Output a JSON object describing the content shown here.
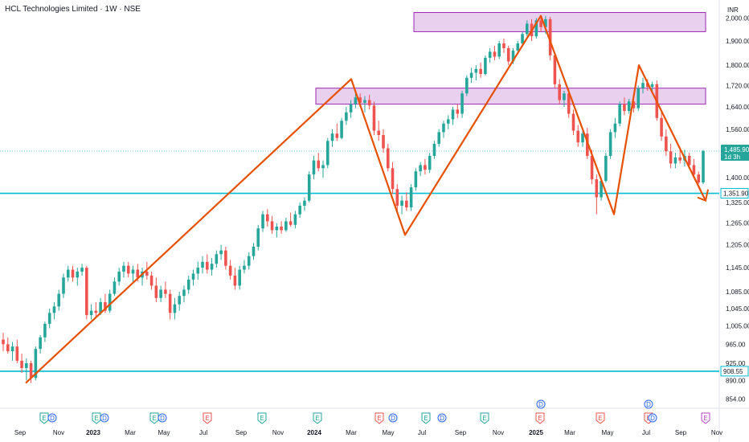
{
  "header": {
    "symbol_title": "HCL Technologies Limited · 1W · NSE",
    "currency": "INR"
  },
  "chart_data": {
    "type": "candlestick",
    "title": "HCL Technologies Limited · 1W · NSE",
    "y_axis": {
      "scale": "log",
      "range": [
        850,
        2060
      ],
      "ticks": [
        "2,000.00",
        "1,900.00",
        "1,800.00",
        "1,720.00",
        "1,640.00",
        "1,560.00",
        "1,400.00",
        "1,325.00",
        "1,265.00",
        "1,205.00",
        "1,145.00",
        "1,085.00",
        "1,045.00",
        "1,005.00",
        "965.00",
        "925.00",
        "890.00",
        "854.00"
      ]
    },
    "x_axis": {
      "labels": [
        "Sep",
        "Nov",
        "2023",
        "Mar",
        "May",
        "Jul",
        "Sep",
        "Nov",
        "2024",
        "Mar",
        "May",
        "Jul",
        "Sep",
        "Nov",
        "2025",
        "Mar",
        "May",
        "Jul",
        "Sep",
        "Nov"
      ]
    },
    "current_price": {
      "label": "1,485.90",
      "countdown": "1d 3h",
      "value": 1485.9,
      "color": "#26a69a"
    },
    "horizontal_levels": [
      {
        "label": "1,351.90",
        "value": 1351.9,
        "color": "#00bcd4"
      },
      {
        "label": "908.55",
        "value": 908.55,
        "color": "#00bcd4"
      }
    ],
    "zones": [
      {
        "from_value": 1940,
        "to_value": 2025,
        "color": "#9c27b0"
      },
      {
        "from_value": 1650,
        "to_value": 1710,
        "color": "#9c27b0"
      }
    ],
    "zigzag_points": [
      {
        "date": "Sep 2022",
        "value": 885
      },
      {
        "date": "Mar 2024",
        "value": 1745
      },
      {
        "date": "Jun 2024",
        "value": 1232
      },
      {
        "date": "Jan 2025",
        "value": 2010
      },
      {
        "date": "Apr 2025",
        "value": 1290
      },
      {
        "date": "Jul 2025",
        "value": 1800
      },
      {
        "date": "Oct 2025",
        "value": 1330
      }
    ],
    "zigzag_color": "#e65100",
    "up_color": "#26a69a",
    "down_color": "#ef5350",
    "candles": [
      {
        "o": 975,
        "h": 990,
        "l": 950,
        "c": 965
      },
      {
        "o": 965,
        "h": 980,
        "l": 945,
        "c": 950
      },
      {
        "o": 950,
        "h": 970,
        "l": 930,
        "c": 960
      },
      {
        "o": 960,
        "h": 975,
        "l": 925,
        "c": 930
      },
      {
        "o": 930,
        "h": 945,
        "l": 905,
        "c": 915
      },
      {
        "o": 915,
        "h": 935,
        "l": 890,
        "c": 925
      },
      {
        "o": 925,
        "h": 930,
        "l": 885,
        "c": 895
      },
      {
        "o": 895,
        "h": 960,
        "l": 890,
        "c": 955
      },
      {
        "o": 955,
        "h": 985,
        "l": 945,
        "c": 980
      },
      {
        "o": 980,
        "h": 1015,
        "l": 970,
        "c": 1010
      },
      {
        "o": 1010,
        "h": 1045,
        "l": 1000,
        "c": 1035
      },
      {
        "o": 1035,
        "h": 1060,
        "l": 1020,
        "c": 1050
      },
      {
        "o": 1050,
        "h": 1090,
        "l": 1040,
        "c": 1080
      },
      {
        "o": 1080,
        "h": 1130,
        "l": 1070,
        "c": 1120
      },
      {
        "o": 1120,
        "h": 1150,
        "l": 1110,
        "c": 1140
      },
      {
        "o": 1140,
        "h": 1150,
        "l": 1110,
        "c": 1120
      },
      {
        "o": 1120,
        "h": 1145,
        "l": 1100,
        "c": 1135
      },
      {
        "o": 1135,
        "h": 1155,
        "l": 1125,
        "c": 1145
      },
      {
        "o": 1145,
        "h": 1150,
        "l": 1020,
        "c": 1030
      },
      {
        "o": 1030,
        "h": 1055,
        "l": 1020,
        "c": 1040
      },
      {
        "o": 1040,
        "h": 1060,
        "l": 1025,
        "c": 1035
      },
      {
        "o": 1035,
        "h": 1070,
        "l": 1030,
        "c": 1060
      },
      {
        "o": 1060,
        "h": 1080,
        "l": 1035,
        "c": 1040
      },
      {
        "o": 1040,
        "h": 1090,
        "l": 1035,
        "c": 1080
      },
      {
        "o": 1080,
        "h": 1120,
        "l": 1075,
        "c": 1110
      },
      {
        "o": 1110,
        "h": 1145,
        "l": 1100,
        "c": 1135
      },
      {
        "o": 1135,
        "h": 1160,
        "l": 1120,
        "c": 1150
      },
      {
        "o": 1150,
        "h": 1160,
        "l": 1120,
        "c": 1130
      },
      {
        "o": 1130,
        "h": 1150,
        "l": 1110,
        "c": 1140
      },
      {
        "o": 1140,
        "h": 1155,
        "l": 1110,
        "c": 1120
      },
      {
        "o": 1120,
        "h": 1145,
        "l": 1100,
        "c": 1135
      },
      {
        "o": 1135,
        "h": 1160,
        "l": 1115,
        "c": 1125
      },
      {
        "o": 1125,
        "h": 1135,
        "l": 1090,
        "c": 1100
      },
      {
        "o": 1100,
        "h": 1120,
        "l": 1060,
        "c": 1070
      },
      {
        "o": 1070,
        "h": 1100,
        "l": 1060,
        "c": 1090
      },
      {
        "o": 1090,
        "h": 1110,
        "l": 1070,
        "c": 1080
      },
      {
        "o": 1080,
        "h": 1090,
        "l": 1020,
        "c": 1035
      },
      {
        "o": 1035,
        "h": 1070,
        "l": 1020,
        "c": 1055
      },
      {
        "o": 1055,
        "h": 1085,
        "l": 1040,
        "c": 1075
      },
      {
        "o": 1075,
        "h": 1100,
        "l": 1060,
        "c": 1090
      },
      {
        "o": 1090,
        "h": 1125,
        "l": 1080,
        "c": 1115
      },
      {
        "o": 1115,
        "h": 1140,
        "l": 1100,
        "c": 1130
      },
      {
        "o": 1130,
        "h": 1160,
        "l": 1115,
        "c": 1145
      },
      {
        "o": 1145,
        "h": 1175,
        "l": 1130,
        "c": 1160
      },
      {
        "o": 1160,
        "h": 1180,
        "l": 1130,
        "c": 1140
      },
      {
        "o": 1140,
        "h": 1170,
        "l": 1125,
        "c": 1155
      },
      {
        "o": 1155,
        "h": 1190,
        "l": 1145,
        "c": 1180
      },
      {
        "o": 1180,
        "h": 1205,
        "l": 1165,
        "c": 1190
      },
      {
        "o": 1190,
        "h": 1200,
        "l": 1140,
        "c": 1150
      },
      {
        "o": 1150,
        "h": 1165,
        "l": 1115,
        "c": 1125
      },
      {
        "o": 1125,
        "h": 1145,
        "l": 1090,
        "c": 1100
      },
      {
        "o": 1100,
        "h": 1150,
        "l": 1090,
        "c": 1140
      },
      {
        "o": 1140,
        "h": 1165,
        "l": 1130,
        "c": 1150
      },
      {
        "o": 1150,
        "h": 1185,
        "l": 1140,
        "c": 1175
      },
      {
        "o": 1175,
        "h": 1210,
        "l": 1165,
        "c": 1200
      },
      {
        "o": 1200,
        "h": 1260,
        "l": 1190,
        "c": 1250
      },
      {
        "o": 1250,
        "h": 1300,
        "l": 1240,
        "c": 1290
      },
      {
        "o": 1290,
        "h": 1305,
        "l": 1255,
        "c": 1270
      },
      {
        "o": 1270,
        "h": 1285,
        "l": 1235,
        "c": 1245
      },
      {
        "o": 1245,
        "h": 1265,
        "l": 1225,
        "c": 1255
      },
      {
        "o": 1255,
        "h": 1270,
        "l": 1235,
        "c": 1245
      },
      {
        "o": 1245,
        "h": 1280,
        "l": 1240,
        "c": 1270
      },
      {
        "o": 1270,
        "h": 1295,
        "l": 1255,
        "c": 1260
      },
      {
        "o": 1260,
        "h": 1300,
        "l": 1250,
        "c": 1290
      },
      {
        "o": 1290,
        "h": 1325,
        "l": 1280,
        "c": 1315
      },
      {
        "o": 1315,
        "h": 1340,
        "l": 1300,
        "c": 1330
      },
      {
        "o": 1330,
        "h": 1420,
        "l": 1325,
        "c": 1410
      },
      {
        "o": 1410,
        "h": 1470,
        "l": 1395,
        "c": 1455
      },
      {
        "o": 1455,
        "h": 1480,
        "l": 1420,
        "c": 1430
      },
      {
        "o": 1430,
        "h": 1455,
        "l": 1400,
        "c": 1440
      },
      {
        "o": 1440,
        "h": 1530,
        "l": 1430,
        "c": 1520
      },
      {
        "o": 1520,
        "h": 1560,
        "l": 1500,
        "c": 1545
      },
      {
        "o": 1545,
        "h": 1580,
        "l": 1520,
        "c": 1530
      },
      {
        "o": 1530,
        "h": 1600,
        "l": 1525,
        "c": 1590
      },
      {
        "o": 1590,
        "h": 1640,
        "l": 1575,
        "c": 1620
      },
      {
        "o": 1620,
        "h": 1665,
        "l": 1600,
        "c": 1650
      },
      {
        "o": 1650,
        "h": 1690,
        "l": 1635,
        "c": 1675
      },
      {
        "o": 1675,
        "h": 1690,
        "l": 1640,
        "c": 1655
      },
      {
        "o": 1655,
        "h": 1680,
        "l": 1620,
        "c": 1665
      },
      {
        "o": 1665,
        "h": 1685,
        "l": 1630,
        "c": 1645
      },
      {
        "o": 1645,
        "h": 1660,
        "l": 1540,
        "c": 1555
      },
      {
        "o": 1555,
        "h": 1590,
        "l": 1520,
        "c": 1540
      },
      {
        "o": 1540,
        "h": 1560,
        "l": 1480,
        "c": 1495
      },
      {
        "o": 1495,
        "h": 1510,
        "l": 1420,
        "c": 1430
      },
      {
        "o": 1430,
        "h": 1450,
        "l": 1350,
        "c": 1365
      },
      {
        "o": 1365,
        "h": 1380,
        "l": 1300,
        "c": 1315
      },
      {
        "o": 1315,
        "h": 1345,
        "l": 1290,
        "c": 1330
      },
      {
        "o": 1330,
        "h": 1355,
        "l": 1300,
        "c": 1310
      },
      {
        "o": 1310,
        "h": 1380,
        "l": 1300,
        "c": 1370
      },
      {
        "o": 1370,
        "h": 1430,
        "l": 1360,
        "c": 1420
      },
      {
        "o": 1420,
        "h": 1450,
        "l": 1405,
        "c": 1440
      },
      {
        "o": 1440,
        "h": 1460,
        "l": 1410,
        "c": 1425
      },
      {
        "o": 1425,
        "h": 1480,
        "l": 1415,
        "c": 1470
      },
      {
        "o": 1470,
        "h": 1520,
        "l": 1460,
        "c": 1510
      },
      {
        "o": 1510,
        "h": 1560,
        "l": 1500,
        "c": 1550
      },
      {
        "o": 1550,
        "h": 1590,
        "l": 1530,
        "c": 1580
      },
      {
        "o": 1580,
        "h": 1610,
        "l": 1560,
        "c": 1595
      },
      {
        "o": 1595,
        "h": 1640,
        "l": 1575,
        "c": 1630
      },
      {
        "o": 1630,
        "h": 1650,
        "l": 1600,
        "c": 1615
      },
      {
        "o": 1615,
        "h": 1700,
        "l": 1600,
        "c": 1690
      },
      {
        "o": 1690,
        "h": 1760,
        "l": 1680,
        "c": 1750
      },
      {
        "o": 1750,
        "h": 1790,
        "l": 1730,
        "c": 1770
      },
      {
        "o": 1770,
        "h": 1800,
        "l": 1740,
        "c": 1785
      },
      {
        "o": 1785,
        "h": 1810,
        "l": 1750,
        "c": 1765
      },
      {
        "o": 1765,
        "h": 1840,
        "l": 1760,
        "c": 1830
      },
      {
        "o": 1830,
        "h": 1870,
        "l": 1810,
        "c": 1855
      },
      {
        "o": 1855,
        "h": 1880,
        "l": 1820,
        "c": 1835
      },
      {
        "o": 1835,
        "h": 1900,
        "l": 1825,
        "c": 1890
      },
      {
        "o": 1890,
        "h": 1910,
        "l": 1850,
        "c": 1870
      },
      {
        "o": 1870,
        "h": 1880,
        "l": 1800,
        "c": 1815
      },
      {
        "o": 1815,
        "h": 1870,
        "l": 1805,
        "c": 1860
      },
      {
        "o": 1860,
        "h": 1900,
        "l": 1845,
        "c": 1890
      },
      {
        "o": 1890,
        "h": 1940,
        "l": 1880,
        "c": 1930
      },
      {
        "o": 1930,
        "h": 1990,
        "l": 1920,
        "c": 1975
      },
      {
        "o": 1975,
        "h": 1995,
        "l": 1900,
        "c": 1920
      },
      {
        "o": 1920,
        "h": 2000,
        "l": 1910,
        "c": 1990
      },
      {
        "o": 1990,
        "h": 2010,
        "l": 1940,
        "c": 1960
      },
      {
        "o": 1960,
        "h": 2010,
        "l": 1930,
        "c": 1995
      },
      {
        "o": 1995,
        "h": 2005,
        "l": 1820,
        "c": 1840
      },
      {
        "o": 1840,
        "h": 1850,
        "l": 1710,
        "c": 1725
      },
      {
        "o": 1725,
        "h": 1745,
        "l": 1650,
        "c": 1665
      },
      {
        "o": 1665,
        "h": 1700,
        "l": 1640,
        "c": 1690
      },
      {
        "o": 1690,
        "h": 1710,
        "l": 1600,
        "c": 1615
      },
      {
        "o": 1615,
        "h": 1630,
        "l": 1540,
        "c": 1555
      },
      {
        "o": 1555,
        "h": 1575,
        "l": 1500,
        "c": 1515
      },
      {
        "o": 1515,
        "h": 1560,
        "l": 1500,
        "c": 1545
      },
      {
        "o": 1545,
        "h": 1565,
        "l": 1460,
        "c": 1470
      },
      {
        "o": 1470,
        "h": 1490,
        "l": 1380,
        "c": 1395
      },
      {
        "o": 1395,
        "h": 1410,
        "l": 1290,
        "c": 1340
      },
      {
        "o": 1340,
        "h": 1400,
        "l": 1330,
        "c": 1390
      },
      {
        "o": 1390,
        "h": 1480,
        "l": 1385,
        "c": 1470
      },
      {
        "o": 1470,
        "h": 1560,
        "l": 1460,
        "c": 1550
      },
      {
        "o": 1550,
        "h": 1600,
        "l": 1530,
        "c": 1580
      },
      {
        "o": 1580,
        "h": 1660,
        "l": 1570,
        "c": 1650
      },
      {
        "o": 1650,
        "h": 1675,
        "l": 1610,
        "c": 1625
      },
      {
        "o": 1625,
        "h": 1670,
        "l": 1615,
        "c": 1660
      },
      {
        "o": 1660,
        "h": 1680,
        "l": 1620,
        "c": 1635
      },
      {
        "o": 1635,
        "h": 1720,
        "l": 1625,
        "c": 1710
      },
      {
        "o": 1710,
        "h": 1750,
        "l": 1690,
        "c": 1730
      },
      {
        "o": 1730,
        "h": 1745,
        "l": 1700,
        "c": 1715
      },
      {
        "o": 1715,
        "h": 1735,
        "l": 1690,
        "c": 1725
      },
      {
        "o": 1725,
        "h": 1740,
        "l": 1590,
        "c": 1600
      },
      {
        "o": 1600,
        "h": 1620,
        "l": 1520,
        "c": 1535
      },
      {
        "o": 1535,
        "h": 1560,
        "l": 1470,
        "c": 1485
      },
      {
        "o": 1485,
        "h": 1510,
        "l": 1430,
        "c": 1445
      },
      {
        "o": 1445,
        "h": 1480,
        "l": 1430,
        "c": 1465
      },
      {
        "o": 1465,
        "h": 1500,
        "l": 1445,
        "c": 1455
      },
      {
        "o": 1455,
        "h": 1490,
        "l": 1435,
        "c": 1470
      },
      {
        "o": 1470,
        "h": 1480,
        "l": 1430,
        "c": 1440
      },
      {
        "o": 1440,
        "h": 1460,
        "l": 1400,
        "c": 1410
      },
      {
        "o": 1410,
        "h": 1420,
        "l": 1380,
        "c": 1385
      },
      {
        "o": 1385,
        "h": 1490,
        "l": 1380,
        "c": 1486
      }
    ],
    "event_markers": [
      {
        "label": "E",
        "kind": "earnings-up"
      },
      {
        "label": "E",
        "kind": "earnings-up"
      },
      {
        "label": "E",
        "kind": "earnings-up"
      },
      {
        "label": "E",
        "kind": "earnings-down"
      },
      {
        "label": "E",
        "kind": "earnings-up"
      },
      {
        "label": "E",
        "kind": "earnings-up"
      },
      {
        "label": "E",
        "kind": "earnings-down"
      },
      {
        "label": "E",
        "kind": "earnings-up"
      },
      {
        "label": "E",
        "kind": "earnings-up"
      },
      {
        "label": "E",
        "kind": "earnings-down"
      },
      {
        "label": "E",
        "kind": "earnings-down"
      },
      {
        "label": "E",
        "kind": "earnings-down"
      },
      {
        "label": "E",
        "kind": "earnings-future"
      }
    ],
    "dividend_markers": [
      {
        "label": "D"
      },
      {
        "label": "D"
      },
      {
        "label": "D"
      },
      {
        "label": "D"
      },
      {
        "label": "D"
      },
      {
        "label": "D"
      }
    ]
  }
}
